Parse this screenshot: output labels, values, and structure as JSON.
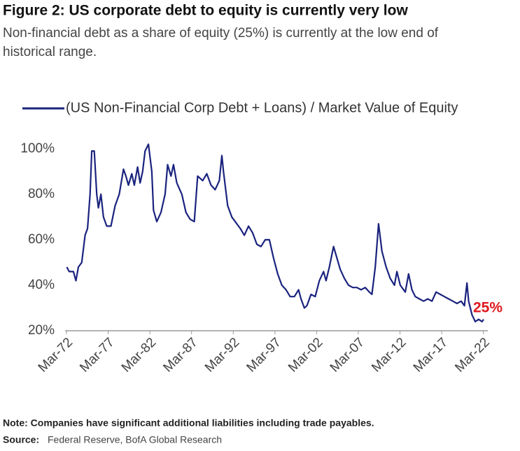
{
  "chart_data": {
    "type": "line",
    "title": "Figure 2: US corporate debt to equity is currently very low",
    "subtitle": [
      "Non-financial debt as a share of equity (25%) is currently at the low end of",
      "historical range."
    ],
    "annotation": "25%",
    "annotation_color": "#e0191f",
    "note": "Note: Companies have significant additional liabilities including trade payables.",
    "source_label": "Source:",
    "source": "Federal Reserve, BofA Global Research",
    "xlim": [
      1972.17,
      2022.7
    ],
    "xticks": [
      {
        "value": 1972.17,
        "label": "Mar-72"
      },
      {
        "value": 1977.17,
        "label": "Mar-77"
      },
      {
        "value": 1982.17,
        "label": "Mar-82"
      },
      {
        "value": 1987.17,
        "label": "Mar-87"
      },
      {
        "value": 1992.17,
        "label": "Mar-92"
      },
      {
        "value": 1997.17,
        "label": "Mar-97"
      },
      {
        "value": 2002.17,
        "label": "Mar-02"
      },
      {
        "value": 2007.17,
        "label": "Mar-07"
      },
      {
        "value": 2012.17,
        "label": "Mar-12"
      },
      {
        "value": 2017.17,
        "label": "Mar-17"
      },
      {
        "value": 2022.17,
        "label": "Mar-22"
      }
    ],
    "ylim": [
      20,
      103
    ],
    "yticks": [
      {
        "value": 20,
        "label": "20%"
      },
      {
        "value": 40,
        "label": "40%"
      },
      {
        "value": 60,
        "label": "60%"
      },
      {
        "value": 80,
        "label": "80%"
      },
      {
        "value": 100,
        "label": "100%"
      }
    ],
    "x": [
      1972.2,
      1972.5,
      1973.0,
      1973.3,
      1973.6,
      1974.0,
      1974.4,
      1974.7,
      1975.0,
      1975.2,
      1975.5,
      1975.8,
      1976.0,
      1976.3,
      1976.6,
      1977.0,
      1977.5,
      1978.0,
      1978.5,
      1979.0,
      1979.3,
      1979.6,
      1980.0,
      1980.3,
      1980.7,
      1981.0,
      1981.3,
      1981.6,
      1982.0,
      1982.4,
      1982.6,
      1983.0,
      1983.5,
      1984.0,
      1984.3,
      1984.7,
      1985.0,
      1985.4,
      1986.0,
      1986.5,
      1987.0,
      1987.5,
      1987.9,
      1988.5,
      1989.0,
      1989.5,
      1990.0,
      1990.5,
      1990.8,
      1991.0,
      1991.5,
      1992.0,
      1993.0,
      1993.5,
      1994.0,
      1994.5,
      1995.0,
      1995.5,
      1996.0,
      1996.5,
      1997.0,
      1997.5,
      1998.0,
      1998.5,
      1999.0,
      1999.5,
      2000.0,
      2000.3,
      2000.7,
      2001.0,
      2001.5,
      2002.0,
      2002.5,
      2003.0,
      2003.3,
      2003.7,
      2004.2,
      2004.6,
      2005.0,
      2005.5,
      2006.0,
      2006.5,
      2007.0,
      2007.5,
      2008.0,
      2008.5,
      2008.8,
      2009.2,
      2009.6,
      2010.0,
      2010.5,
      2011.0,
      2011.5,
      2011.8,
      2012.2,
      2012.8,
      2013.2,
      2013.6,
      2014.0,
      2014.5,
      2015.0,
      2015.5,
      2016.0,
      2016.5,
      2017.0,
      2017.5,
      2018.0,
      2018.5,
      2019.0,
      2019.5,
      2019.9,
      2020.2,
      2020.4,
      2020.8,
      2021.2,
      2021.6,
      2022.0,
      2022.2
    ],
    "series": [
      {
        "name": "(US Non-Financial Corp Debt + Loans) / Market Value of Equity",
        "color": "#1a237e",
        "values": [
          48,
          46,
          46,
          42,
          48,
          50,
          62,
          65,
          80,
          99,
          99,
          80,
          74,
          80,
          70,
          66,
          66,
          75,
          80,
          91,
          88,
          84,
          89,
          84,
          92,
          85,
          90,
          99,
          102,
          90,
          73,
          68,
          72,
          80,
          93,
          88,
          93,
          85,
          80,
          72,
          69,
          68,
          88,
          86,
          89,
          84,
          82,
          86,
          97,
          90,
          75,
          70,
          65,
          62,
          66,
          63,
          58,
          57,
          60,
          60,
          52,
          45,
          40,
          38,
          35,
          35,
          38,
          34,
          30,
          31,
          36,
          35,
          42,
          46,
          42,
          48,
          57,
          52,
          47,
          43,
          40,
          39,
          39,
          38,
          39,
          37,
          36,
          48,
          67,
          55,
          48,
          43,
          40,
          46,
          40,
          37,
          45,
          38,
          35,
          34,
          33,
          34,
          33,
          37,
          36,
          35,
          34,
          33,
          32,
          33,
          31,
          41,
          33,
          27,
          24,
          25,
          24,
          25
        ]
      }
    ]
  }
}
